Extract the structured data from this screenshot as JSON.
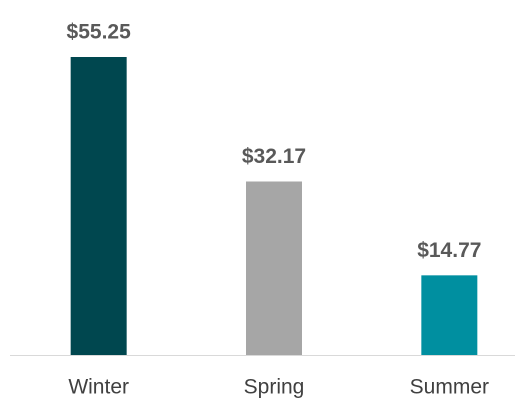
{
  "chart_data": {
    "type": "bar",
    "categories": [
      "Winter",
      "Spring",
      "Summer"
    ],
    "values": [
      55.25,
      32.17,
      14.77
    ],
    "value_labels": [
      "$55.25",
      "$32.17",
      "$14.77"
    ],
    "colors": [
      "#00474f",
      "#a6a6a6",
      "#008fa0"
    ]
  }
}
